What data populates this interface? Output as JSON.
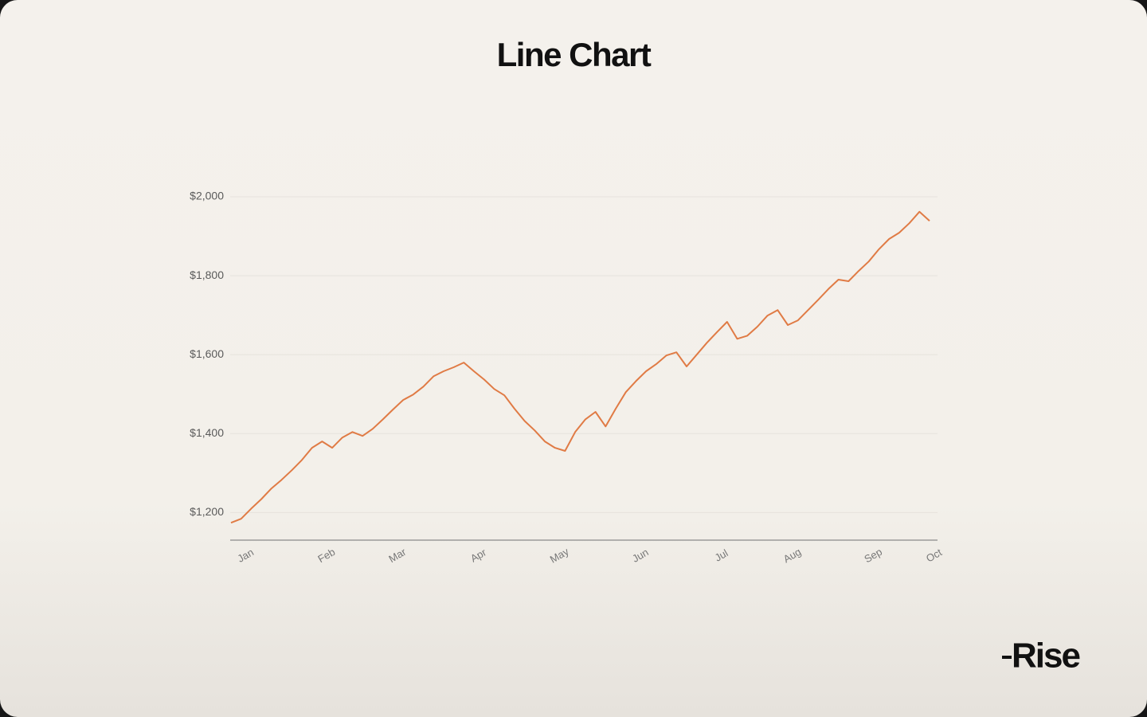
{
  "chart_data": {
    "type": "line",
    "title": "Line Chart",
    "categories": [
      null,
      "Jan",
      null,
      null,
      null,
      null,
      null,
      null,
      null,
      "Feb",
      null,
      null,
      null,
      null,
      null,
      null,
      "Mar",
      null,
      null,
      null,
      null,
      null,
      null,
      null,
      "Apr",
      null,
      null,
      null,
      null,
      null,
      null,
      null,
      "May",
      null,
      null,
      null,
      null,
      null,
      null,
      null,
      "Jun",
      null,
      null,
      null,
      null,
      null,
      null,
      null,
      "Jul",
      null,
      null,
      null,
      null,
      null,
      null,
      "Aug",
      null,
      null,
      null,
      null,
      null,
      null,
      null,
      "Sep",
      null,
      null,
      null,
      null,
      null,
      "Oct"
    ],
    "values": [
      1174,
      1184,
      1210,
      1234,
      1261,
      1283,
      1307,
      1333,
      1364,
      1380,
      1364,
      1390,
      1404,
      1394,
      1412,
      1436,
      1461,
      1485,
      1499,
      1519,
      1545,
      1558,
      1568,
      1580,
      1558,
      1537,
      1513,
      1497,
      1463,
      1432,
      1408,
      1380,
      1364,
      1356,
      1404,
      1436,
      1455,
      1418,
      1463,
      1505,
      1533,
      1558,
      1576,
      1598,
      1606,
      1570,
      1600,
      1630,
      1657,
      1683,
      1640,
      1648,
      1671,
      1699,
      1713,
      1675,
      1687,
      1713,
      1739,
      1766,
      1790,
      1786,
      1812,
      1836,
      1867,
      1893,
      1909,
      1933,
      1962,
      1939
    ],
    "color": "#e07b45",
    "ylim": [
      1130,
      2000
    ],
    "yticks": [
      {
        "value": 1200,
        "label": "$1,200"
      },
      {
        "value": 1400,
        "label": "$1,400"
      },
      {
        "value": 1600,
        "label": "$1,600"
      },
      {
        "value": 1800,
        "label": "$1,800"
      },
      {
        "value": 2000,
        "label": "$2,000"
      }
    ],
    "grid": true
  },
  "brand": "Rise"
}
